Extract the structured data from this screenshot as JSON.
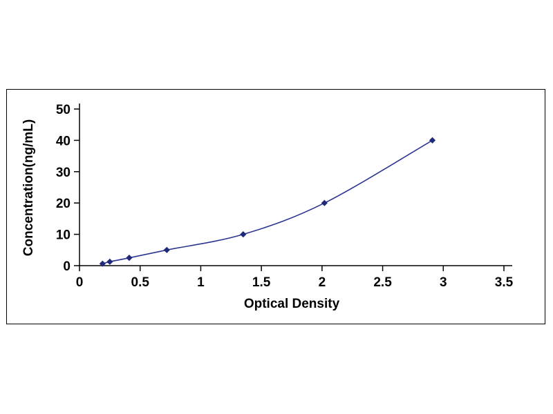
{
  "chart_data": {
    "type": "line",
    "title": "",
    "xlabel": "Optical Density",
    "ylabel": "Concentration(ng/mL)",
    "x": [
      0.19,
      0.25,
      0.41,
      0.72,
      1.35,
      2.02,
      2.91
    ],
    "y": [
      0.625,
      1.25,
      2.5,
      5,
      10,
      20,
      40
    ],
    "xlim": [
      0,
      3.5
    ],
    "ylim": [
      0,
      50
    ],
    "xticks": [
      0,
      0.5,
      1,
      1.5,
      2,
      2.5,
      3,
      3.5
    ],
    "yticks": [
      0,
      10,
      20,
      30,
      40,
      50
    ],
    "grid": false,
    "legend": false,
    "marker": "diamond",
    "line_color": "#2b3490",
    "marker_color": "#1f2a7a",
    "axis_color": "#000000",
    "frame_color": "#000000",
    "background": "#ffffff"
  }
}
